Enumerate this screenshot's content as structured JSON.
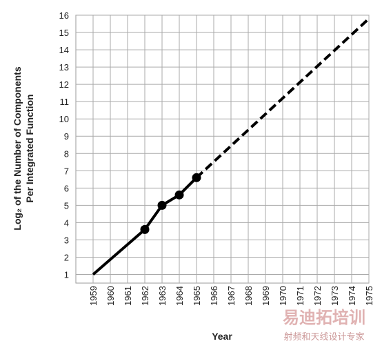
{
  "chart_data": {
    "type": "line",
    "xlabel": "Year",
    "ylabel": [
      "Log₂ of the Number of Components",
      "Per Integrated Function"
    ],
    "xlim": [
      1958,
      1975
    ],
    "xticks": [
      1959,
      1960,
      1961,
      1962,
      1963,
      1964,
      1965,
      1966,
      1967,
      1968,
      1969,
      1970,
      1971,
      1972,
      1973,
      1974,
      1975
    ],
    "ylim": [
      0.5,
      16
    ],
    "yticks": [
      1,
      2,
      3,
      4,
      5,
      6,
      7,
      8,
      9,
      10,
      11,
      12,
      13,
      14,
      15,
      16
    ],
    "grid": true,
    "series": [
      {
        "x": [
          1959,
          1962,
          1963,
          1964,
          1965
        ],
        "values": [
          1,
          3.6,
          5,
          5.6,
          6.6
        ],
        "color": "#000000",
        "dash": false,
        "markers": [
          false,
          true,
          true,
          true,
          true
        ]
      },
      {
        "x": [
          1965,
          1975
        ],
        "values": [
          6.6,
          15.8
        ],
        "color": "#000000",
        "dash": true,
        "markers": [
          false,
          false
        ]
      }
    ],
    "watermark": [
      "易迪拓培训",
      "射频和天线设计专家"
    ]
  }
}
